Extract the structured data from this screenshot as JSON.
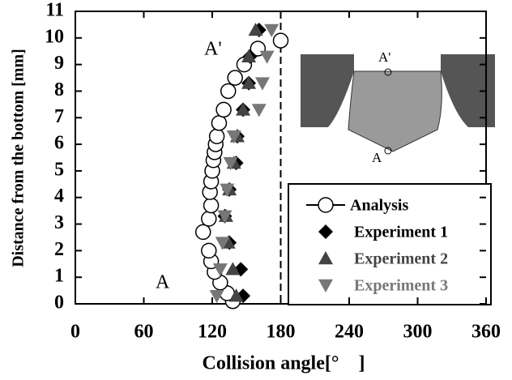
{
  "chart_data": {
    "type": "scatter",
    "x_label": "Collision angle[°　]",
    "y_label": "Distance from the bottom [mm]",
    "xlim": [
      0,
      360
    ],
    "xticks": [
      0,
      60,
      120,
      180,
      240,
      300,
      360
    ],
    "ylim": [
      0,
      11
    ],
    "yticks": [
      0,
      1,
      2,
      3,
      4,
      5,
      6,
      7,
      8,
      9,
      10,
      11
    ],
    "vline": 180,
    "legend": "lower right",
    "annotations": [
      "A'",
      "A"
    ],
    "inset_labels": [
      "A'",
      "A"
    ],
    "series": [
      {
        "name": "Analysis",
        "marker": "circle",
        "color": "#000000",
        "x": [
          138,
          133,
          127,
          122,
          119,
          117,
          112,
          117,
          119,
          118,
          119,
          120,
          121,
          122,
          123,
          124,
          126,
          130,
          134,
          140,
          148,
          160,
          180
        ],
        "values": [
          0.1,
          0.4,
          0.8,
          1.2,
          1.6,
          2.0,
          2.7,
          3.2,
          3.7,
          4.2,
          4.6,
          5.0,
          5.4,
          5.7,
          6.0,
          6.3,
          6.8,
          7.3,
          8.0,
          8.5,
          9.0,
          9.6,
          9.9
        ]
      },
      {
        "name": "Experiment 1",
        "marker": "diamond",
        "color": "#000000",
        "x": [
          147,
          145,
          135,
          131,
          135,
          141,
          142,
          147,
          152,
          153,
          161
        ],
        "values": [
          0.3,
          1.3,
          2.3,
          3.3,
          4.3,
          5.3,
          6.3,
          7.3,
          8.3,
          9.3,
          10.3
        ]
      },
      {
        "name": "Experiment 2",
        "marker": "triangle-up",
        "color": "#444444",
        "x": [
          141,
          138,
          134,
          132,
          135,
          139,
          142,
          147,
          152,
          152,
          158
        ],
        "values": [
          0.3,
          1.3,
          2.3,
          3.3,
          4.3,
          5.3,
          6.3,
          7.3,
          8.3,
          9.3,
          10.3
        ]
      },
      {
        "name": "Experiment 3",
        "marker": "triangle-down",
        "color": "#777777",
        "x": [
          124,
          127,
          129,
          131,
          133,
          136,
          139,
          161,
          164,
          168,
          172
        ],
        "values": [
          0.3,
          1.3,
          2.3,
          3.3,
          4.3,
          5.3,
          6.3,
          7.3,
          8.3,
          9.3,
          10.3
        ]
      }
    ]
  }
}
